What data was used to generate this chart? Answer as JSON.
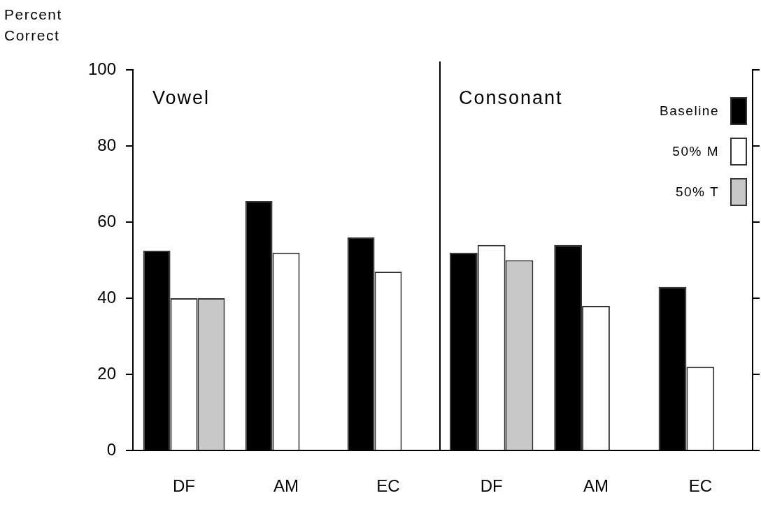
{
  "chart_data": [
    {
      "type": "bar",
      "title": "Vowel",
      "ylabel": "Percent Correct",
      "categories": [
        "DF",
        "AM",
        "EC"
      ],
      "series": [
        {
          "color": "#000000",
          "values": [
            52.5,
            65.5,
            56
          ]
        },
        {
          "color": "#ffffff",
          "values": [
            40,
            52,
            47
          ]
        },
        {
          "color": "#c8c8c8",
          "values": [
            40,
            null,
            null
          ]
        }
      ],
      "ylim": [
        0,
        100
      ],
      "yticks": [
        0,
        20,
        40,
        60,
        80,
        100
      ],
      "legend": false
    },
    {
      "type": "bar",
      "title": "Consonant",
      "categories": [
        "DF",
        "AM",
        "EC"
      ],
      "series": [
        {
          "name": "Baseline",
          "color": "#000000",
          "values": [
            52,
            54,
            43
          ]
        },
        {
          "name": "50% M",
          "color": "#ffffff",
          "values": [
            54,
            38,
            22
          ]
        },
        {
          "name": "50% T",
          "color": "#c8c8c8",
          "values": [
            50,
            null,
            null
          ]
        }
      ],
      "ylim": [
        0,
        100
      ],
      "yticks": [
        0,
        20,
        40,
        60,
        80,
        100
      ],
      "tick_labels": "x",
      "legend": "top right"
    }
  ]
}
